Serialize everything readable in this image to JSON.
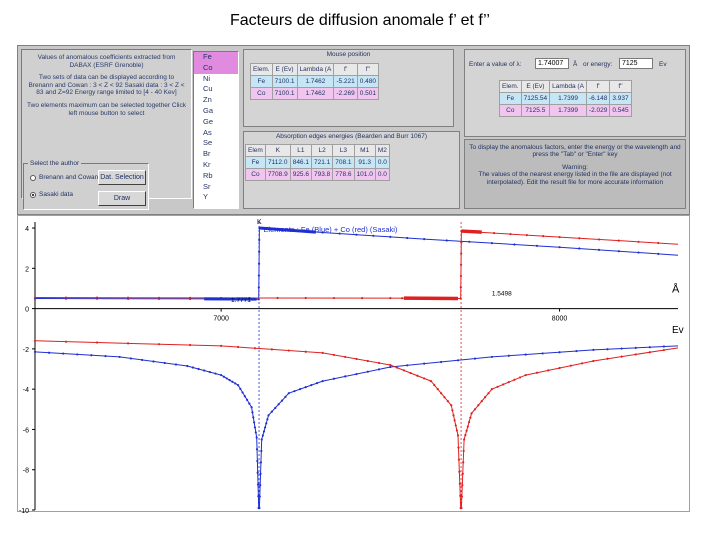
{
  "slide_title": "Facteurs de diffusion anomale f’ et f’’",
  "info": {
    "line1": "Values of anomalous coefficients extracted from DABAX (ESRF Grenoble)",
    "line2": "Two sets of data can be displayed according to Brenann and Cowan : 3 < Z < 92 Sasaki data : 3 < Z < 83 and Z=92 Energy range limited to [4 - 40 Kev]",
    "line3": "Two elements maximum can be selected together Click left mouse button to select"
  },
  "elements": [
    "Fe",
    "Co",
    "Ni",
    "Cu",
    "Zn",
    "Ga",
    "Ge",
    "As",
    "Se",
    "Br",
    "Kr",
    "Rb",
    "Sr",
    "Y"
  ],
  "elements_selected": [
    "Fe",
    "Co"
  ],
  "author": {
    "legend": "Select the author",
    "option1": "Brenann and Cowan data",
    "option2": "Sasaki data",
    "selected": "Sasaki data",
    "btn_dat_selection": "Dat. Selection",
    "btn_draw": "Draw"
  },
  "mouse_position": {
    "title": "Mouse position",
    "headers": [
      "Elem.",
      "E (Ev)",
      "Lambda (A",
      "f'",
      "f''"
    ],
    "rows": [
      [
        "Fe",
        "7100.1",
        "1.7462",
        "-5.221",
        "0.480"
      ],
      [
        "Co",
        "7100.1",
        "1.7462",
        "-2.269",
        "0.501"
      ]
    ]
  },
  "absorption": {
    "title": "Absorption edges energies (Bearden and Burr 1067)",
    "headers": [
      "Elem",
      "K",
      "L1",
      "L2",
      "L3",
      "M1",
      "M2"
    ],
    "rows": [
      [
        "Fe",
        "7112.0",
        "846.1",
        "721.1",
        "708.1",
        "91.3",
        "0.0"
      ],
      [
        "Co",
        "7708.9",
        "925.6",
        "793.8",
        "778.6",
        "101.0",
        "0.0"
      ]
    ]
  },
  "calculator": {
    "enter_label": "Enter a value of λ:",
    "lambda_value": "1.74007",
    "lambda_unit": "Å",
    "energy_label": "or energy:",
    "energy_value": "7125",
    "energy_unit": "Ev",
    "headers": [
      "Elem.",
      "E (Ev)",
      "Lambda (A",
      "f'",
      "f''"
    ],
    "rows": [
      [
        "Fe",
        "7125.54",
        "1.7399",
        "-6.148",
        "3.937"
      ],
      [
        "Co",
        "7125.5",
        "1.7399",
        "-2.029",
        "0.545"
      ]
    ]
  },
  "warning": {
    "intro": "To display the anomalous factors, enter the energy or the wavelength and press the \"Tab\" or \"Enter\" key",
    "title": "Warning:",
    "text": "The values of the nearest energy listed in the file are displayed (not interpolated). Edit the result file for more accurate information"
  },
  "chart_data": {
    "type": "line",
    "title": "Elements : Fe (Blue) + Co (red) (Sasaki)",
    "x_unit_label": "Ev",
    "y_unit_label": "Å",
    "xlim": [
      6450,
      8350
    ],
    "ylim": [
      -10,
      4.3
    ],
    "x_ticks": [
      7000,
      8000
    ],
    "y_ticks": [
      4,
      2,
      0,
      -2,
      -4,
      -6,
      -8,
      -10
    ],
    "edge_labels": {
      "left": "K",
      "mid_left": "1.7771",
      "mid_right": "1.5498"
    },
    "edges": [
      {
        "element": "Fe",
        "energy": 7112,
        "color": "#1f2fd0"
      },
      {
        "element": "Co",
        "energy": 7709,
        "color": "#e02020"
      }
    ],
    "colors": {
      "Fe": "#1f2fd0",
      "Co": "#e02020"
    },
    "series": [
      {
        "element": "Fe",
        "quantity": "f''",
        "x": [
          6450,
          7000,
          7111,
          7113,
          7300,
          7600,
          8000,
          8350
        ],
        "y": [
          0.5,
          0.48,
          0.46,
          4.0,
          3.78,
          3.45,
          3.05,
          2.65
        ]
      },
      {
        "element": "Co",
        "quantity": "f''",
        "x": [
          6450,
          7000,
          7500,
          7708,
          7710,
          8000,
          8350
        ],
        "y": [
          0.55,
          0.53,
          0.52,
          0.5,
          3.85,
          3.55,
          3.2
        ]
      },
      {
        "element": "Fe",
        "quantity": "f'",
        "x": [
          6450,
          6700,
          6900,
          7000,
          7050,
          7090,
          7105,
          7111,
          7113,
          7120,
          7140,
          7200,
          7300,
          7500,
          7800,
          8100,
          8350
        ],
        "y": [
          -2.15,
          -2.4,
          -2.85,
          -3.3,
          -3.8,
          -4.9,
          -6.4,
          -9.9,
          -9.9,
          -6.5,
          -5.3,
          -4.2,
          -3.6,
          -2.9,
          -2.4,
          -2.05,
          -1.85
        ]
      },
      {
        "element": "Co",
        "quantity": "f'",
        "x": [
          6450,
          7000,
          7300,
          7500,
          7620,
          7680,
          7700,
          7708,
          7710,
          7718,
          7740,
          7800,
          7900,
          8100,
          8350
        ],
        "y": [
          -1.6,
          -1.85,
          -2.2,
          -2.8,
          -3.6,
          -4.8,
          -6.3,
          -9.9,
          -9.9,
          -6.5,
          -5.2,
          -4.0,
          -3.3,
          -2.6,
          -1.95
        ]
      }
    ]
  }
}
